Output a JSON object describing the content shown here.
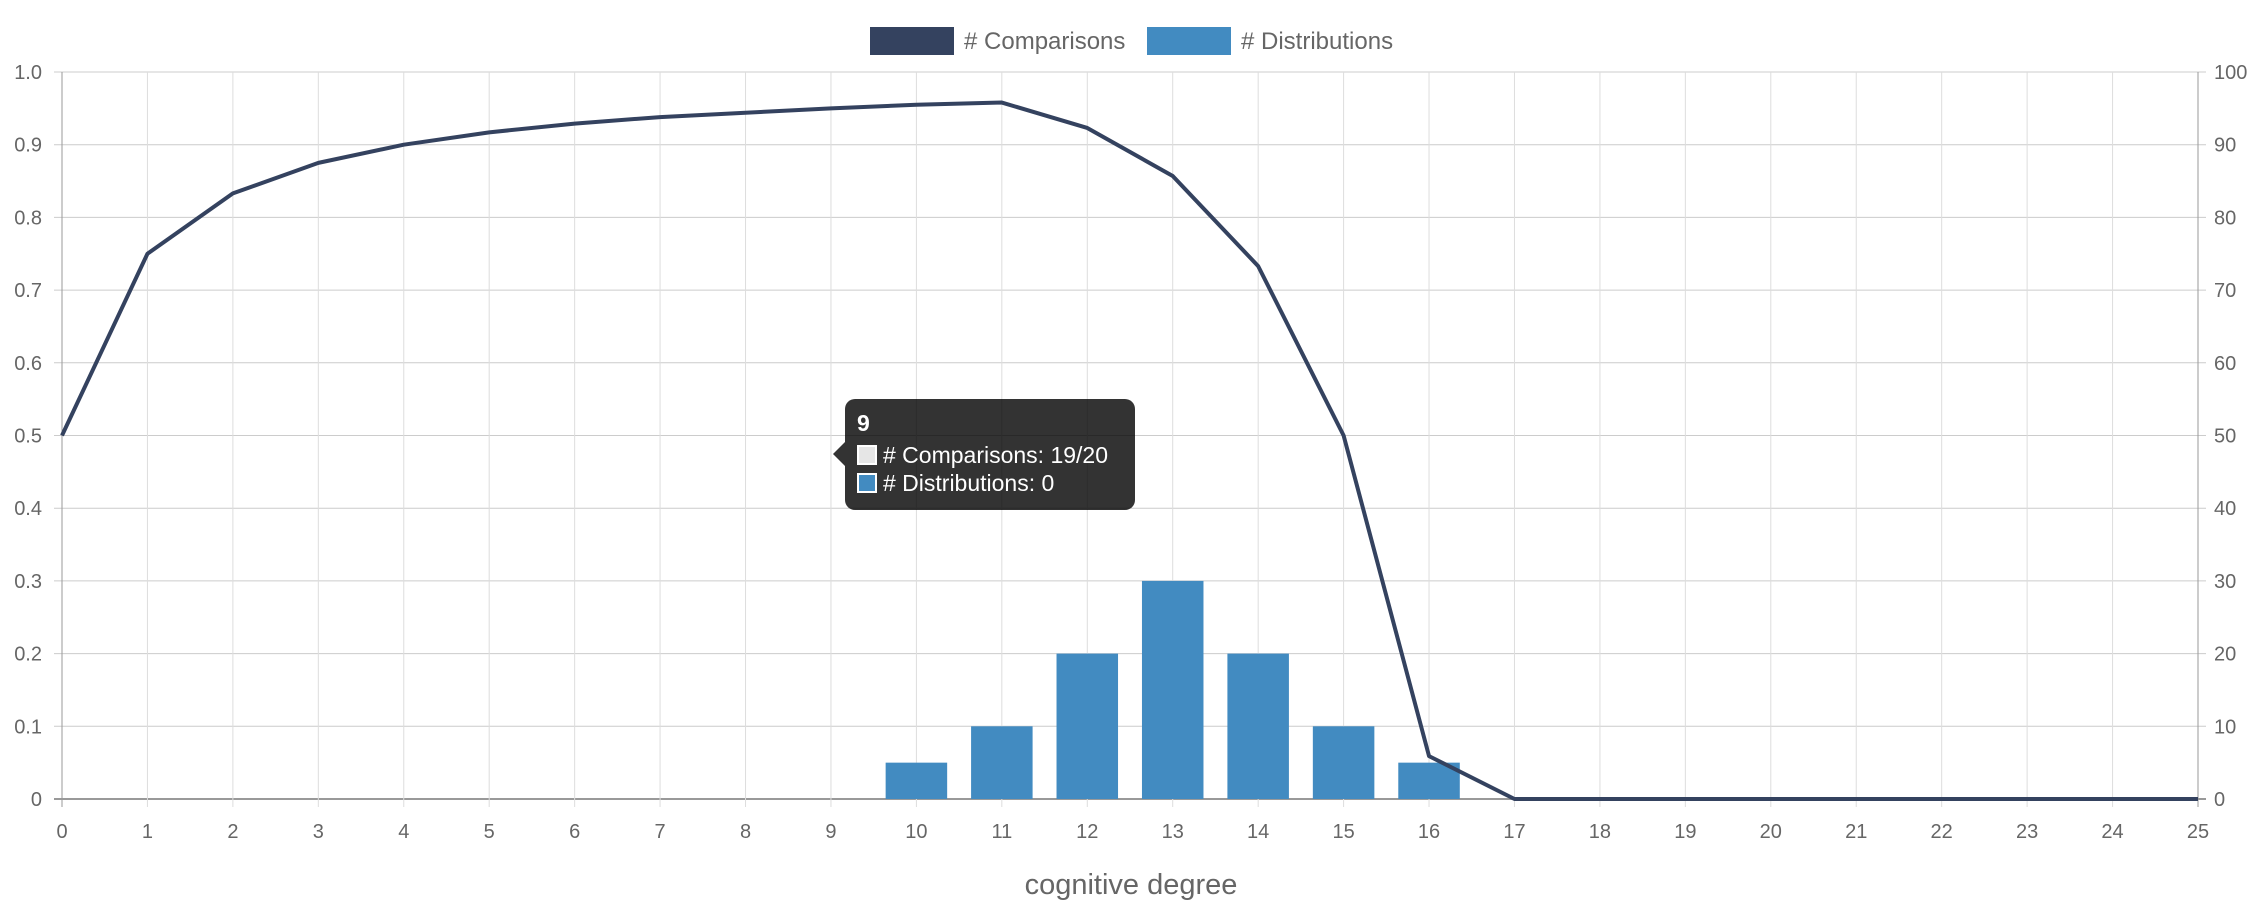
{
  "chart_data": {
    "type": "bar+line",
    "x": [
      0,
      1,
      2,
      3,
      4,
      5,
      6,
      7,
      8,
      9,
      10,
      11,
      12,
      13,
      14,
      15,
      16,
      17,
      18,
      19,
      20,
      21,
      22,
      23,
      24,
      25
    ],
    "xlabel": "cognitive degree",
    "y_left": {
      "ylim": [
        0,
        1.0
      ],
      "ticks": [
        "0",
        "0.1",
        "0.2",
        "0.3",
        "0.4",
        "0.5",
        "0.6",
        "0.7",
        "0.8",
        "0.9",
        "1.0"
      ]
    },
    "y_right": {
      "ylim": [
        0,
        100
      ],
      "ticks": [
        "0",
        "10",
        "20",
        "30",
        "40",
        "50",
        "60",
        "70",
        "80",
        "90",
        "100"
      ]
    },
    "grid": true,
    "legend_position": "top-center",
    "series": [
      {
        "name": "# Comparisons",
        "type": "line",
        "axis": "left",
        "color": "#34425f",
        "values": [
          0.5,
          0.75,
          0.833,
          0.875,
          0.9,
          0.917,
          0.929,
          0.938,
          0.944,
          0.95,
          0.955,
          0.958,
          0.923,
          0.857,
          0.733,
          0.5,
          0.059,
          0,
          0,
          0,
          0,
          0,
          0,
          0,
          0,
          0
        ]
      },
      {
        "name": "# Distributions",
        "type": "bar",
        "axis": "right",
        "color": "#428bc1",
        "values": [
          0,
          0,
          0,
          0,
          0,
          0,
          0,
          0,
          0,
          0,
          5,
          10,
          20,
          30,
          20,
          10,
          5,
          0,
          0,
          0,
          0,
          0,
          0,
          0,
          0,
          0
        ]
      }
    ],
    "tooltip": {
      "title": "9",
      "rows": [
        {
          "text": "# Comparisons: 19/20",
          "color": "#e6e6e6"
        },
        {
          "text": "# Distributions: 0",
          "color": "#428bc1"
        }
      ]
    }
  }
}
